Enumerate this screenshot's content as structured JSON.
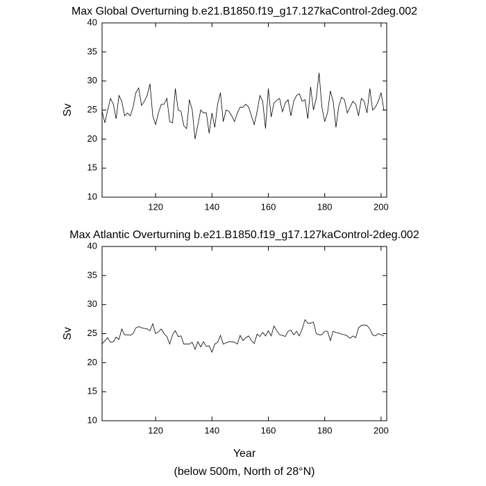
{
  "chart_data": [
    {
      "type": "line",
      "title": "Max Global Overturning b.e21.B1850.f19_g17.127kaControl-2deg.002",
      "ylabel": "Sv",
      "x": [
        101,
        102,
        103,
        104,
        105,
        106,
        107,
        108,
        109,
        110,
        111,
        112,
        113,
        114,
        115,
        116,
        117,
        118,
        119,
        120,
        121,
        122,
        123,
        124,
        125,
        126,
        127,
        128,
        129,
        130,
        131,
        132,
        133,
        134,
        135,
        136,
        137,
        138,
        139,
        140,
        141,
        142,
        143,
        144,
        145,
        146,
        147,
        148,
        149,
        150,
        151,
        152,
        153,
        154,
        155,
        156,
        157,
        158,
        159,
        160,
        161,
        162,
        163,
        164,
        165,
        166,
        167,
        168,
        169,
        170,
        171,
        172,
        173,
        174,
        175,
        176,
        177,
        178,
        179,
        180,
        181,
        182,
        183,
        184,
        185,
        186,
        187,
        188,
        189,
        190,
        191,
        192,
        193,
        194,
        195,
        196,
        197,
        198,
        199,
        200,
        201
      ],
      "series": [
        {
          "color": "#000000",
          "values": [
            24.8,
            22.8,
            25,
            27,
            26,
            23.5,
            27.5,
            26.5,
            24,
            24.5,
            24,
            25.5,
            28,
            28.8,
            25.8,
            26.5,
            27.5,
            29.5,
            24,
            22.5,
            24.5,
            26,
            26,
            27,
            23,
            22.8,
            28.7,
            25,
            24.8,
            22.3,
            21.8,
            26.8,
            25,
            20,
            22.5,
            25,
            24.5,
            24.5,
            21,
            24.5,
            22,
            26,
            28,
            23,
            25,
            24.8,
            24,
            23,
            24.5,
            25.5,
            25.5,
            26,
            25.5,
            24,
            22.5,
            24.7,
            27.5,
            26.5,
            21.8,
            28.7,
            23.8,
            26.2,
            26.7,
            27,
            24.7,
            26.2,
            26.8,
            24,
            26.5,
            27.5,
            27.8,
            26.5,
            26.8,
            23.5,
            29,
            25,
            27,
            31.4,
            25.5,
            23,
            24.5,
            28.3,
            26.5,
            22,
            25.7,
            27.2,
            26.8,
            24.5,
            25.5,
            26.5,
            26,
            24,
            27,
            26.5,
            24.5,
            28.7,
            25,
            25.5,
            26.5,
            28,
            25
          ]
        }
      ],
      "xlim": [
        101,
        202
      ],
      "ylim": [
        10,
        40
      ],
      "xticks": [
        120,
        140,
        160,
        180,
        200
      ],
      "yticks": [
        10,
        15,
        20,
        25,
        30,
        35,
        40
      ]
    },
    {
      "type": "line",
      "title": "Max Atlantic Overturning b.e21.B1850.f19_g17.127kaControl-2deg.002",
      "ylabel": "Sv",
      "xlabel": "Year",
      "note": "(below 500m, North of 28°N)",
      "x": [
        101,
        102,
        103,
        104,
        105,
        106,
        107,
        108,
        109,
        110,
        111,
        112,
        113,
        114,
        115,
        116,
        117,
        118,
        119,
        120,
        121,
        122,
        123,
        124,
        125,
        126,
        127,
        128,
        129,
        130,
        131,
        132,
        133,
        134,
        135,
        136,
        137,
        138,
        139,
        140,
        141,
        142,
        143,
        144,
        145,
        146,
        147,
        148,
        149,
        150,
        151,
        152,
        153,
        154,
        155,
        156,
        157,
        158,
        159,
        160,
        161,
        162,
        163,
        164,
        165,
        166,
        167,
        168,
        169,
        170,
        171,
        172,
        173,
        174,
        175,
        176,
        177,
        178,
        179,
        180,
        181,
        182,
        183,
        184,
        185,
        186,
        187,
        188,
        189,
        190,
        191,
        192,
        193,
        194,
        195,
        196,
        197,
        198,
        199,
        200,
        201
      ],
      "series": [
        {
          "color": "#000000",
          "values": [
            23.2,
            23.8,
            24.3,
            23.5,
            23.6,
            24.4,
            24,
            25.8,
            24.8,
            24.8,
            24.7,
            25,
            26,
            26.2,
            26,
            25.9,
            25.8,
            25.5,
            26.7,
            25,
            25.3,
            25.8,
            25,
            24.5,
            23.2,
            24.8,
            25.5,
            24.5,
            24.6,
            23.2,
            23.2,
            23.2,
            23.5,
            22.3,
            23.6,
            22.7,
            23.6,
            22.8,
            22.9,
            21.8,
            23.2,
            23.5,
            24.7,
            23.2,
            23.4,
            23.6,
            23.6,
            23.5,
            23.2,
            24.7,
            23.8,
            24.3,
            24.6,
            23.8,
            23.3,
            24.9,
            24.5,
            25.2,
            24.6,
            25.5,
            24.6,
            26.3,
            25.5,
            24.8,
            24.7,
            24.5,
            25.4,
            25.6,
            24.8,
            25.4,
            24.6,
            25.8,
            27.4,
            26.8,
            26.8,
            27,
            25,
            24.8,
            24.8,
            25.4,
            25.4,
            23.8,
            25.4,
            25.2,
            25.1,
            24.9,
            24.8,
            24.6,
            24.2,
            24.6,
            24.3,
            26,
            26.4,
            26.5,
            26.4,
            25.8,
            24.8,
            24.6,
            25,
            24.8,
            24.6
          ]
        }
      ],
      "xlim": [
        101,
        202
      ],
      "ylim": [
        10,
        40
      ],
      "xticks": [
        120,
        140,
        160,
        180,
        200
      ],
      "yticks": [
        10,
        15,
        20,
        25,
        30,
        35,
        40
      ]
    }
  ]
}
